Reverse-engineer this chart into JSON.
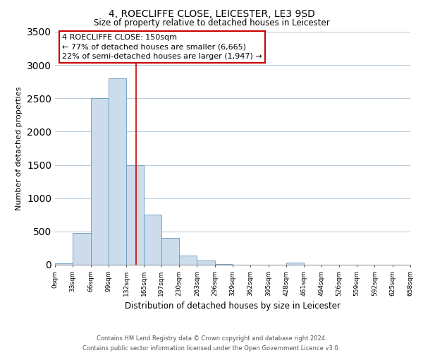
{
  "title": "4, ROECLIFFE CLOSE, LEICESTER, LE3 9SD",
  "subtitle": "Size of property relative to detached houses in Leicester",
  "xlabel": "Distribution of detached houses by size in Leicester",
  "ylabel": "Number of detached properties",
  "bar_edges": [
    0,
    33,
    66,
    99,
    132,
    165,
    197,
    230,
    263,
    296,
    329,
    362,
    395,
    428,
    461,
    494,
    526,
    559,
    592,
    625,
    658
  ],
  "bar_heights": [
    20,
    475,
    2500,
    2800,
    1500,
    750,
    400,
    140,
    60,
    10,
    0,
    0,
    0,
    35,
    5,
    0,
    0,
    0,
    0,
    0
  ],
  "bar_color": "#ccdcec",
  "bar_edgecolor": "#6699bb",
  "vline_x": 150,
  "vline_color": "#cc0000",
  "ylim": [
    0,
    3500
  ],
  "xlim": [
    0,
    658
  ],
  "annotation_text_line1": "4 ROECLIFFE CLOSE: 150sqm",
  "annotation_text_line2": "← 77% of detached houses are smaller (6,665)",
  "annotation_text_line3": "22% of semi-detached houses are larger (1,947) →",
  "tick_labels": [
    "0sqm",
    "33sqm",
    "66sqm",
    "99sqm",
    "132sqm",
    "165sqm",
    "197sqm",
    "230sqm",
    "263sqm",
    "296sqm",
    "329sqm",
    "362sqm",
    "395sqm",
    "428sqm",
    "461sqm",
    "494sqm",
    "526sqm",
    "559sqm",
    "592sqm",
    "625sqm",
    "658sqm"
  ],
  "footer_line1": "Contains HM Land Registry data © Crown copyright and database right 2024.",
  "footer_line2": "Contains public sector information licensed under the Open Government Licence v3.0.",
  "background_color": "#ffffff",
  "grid_color": "#bbccdd",
  "title_fontsize": 10,
  "subtitle_fontsize": 8.5,
  "ylabel_fontsize": 8,
  "xlabel_fontsize": 8.5,
  "tick_fontsize": 6.5,
  "footer_fontsize": 6,
  "annot_fontsize": 8
}
